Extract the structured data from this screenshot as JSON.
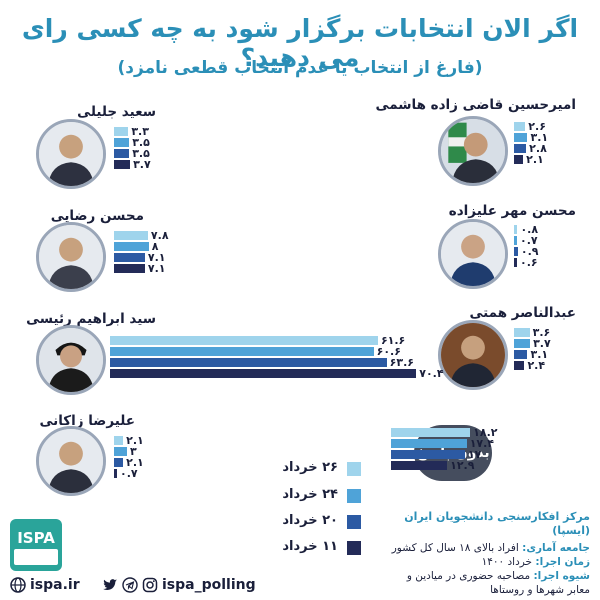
{
  "title": "اگر الان انتخابات برگزار شود به چه کسی رای می دهید؟",
  "subtitle": "(فارغ از انتخاب یا عدم انتخاب قطعی نامزد)",
  "none_label": "بدون پاسخ",
  "colors": {
    "series": [
      "#9fd4ec",
      "#4fa3d8",
      "#2c5aa3",
      "#232b58"
    ],
    "accent": "#2b8fb7",
    "badge": "#454d5e"
  },
  "chart_data": {
    "type": "bar",
    "orientation": "horizontal",
    "xlim": [
      0,
      75
    ],
    "series_names": [
      "۲۶ خرداد",
      "۲۴ خرداد",
      "۲۰ خرداد",
      "۱۱ خرداد"
    ],
    "categories": [
      {
        "name": "سعید جلیلی",
        "values": [
          3.3,
          3.5,
          3.5,
          3.7
        ],
        "labels": [
          "۳.۳",
          "۳.۵",
          "۳.۵",
          "۳.۷"
        ]
      },
      {
        "name": "امیرحسین قاضی زاده هاشمی",
        "values": [
          2.6,
          3.1,
          2.8,
          2.1
        ],
        "labels": [
          "۲.۶",
          "۳.۱",
          "۲.۸",
          "۲.۱"
        ]
      },
      {
        "name": "محسن رضایی",
        "values": [
          7.8,
          8,
          7.1,
          7.1
        ],
        "labels": [
          "۷.۸",
          "۸",
          "۷.۱",
          "۷.۱"
        ]
      },
      {
        "name": "محسن مهر علیزاده",
        "values": [
          0.8,
          0.7,
          0.9,
          0.6
        ],
        "labels": [
          "۰.۸",
          "۰.۷",
          "۰.۹",
          "۰.۶"
        ]
      },
      {
        "name": "سید ابراهیم رئیسی",
        "values": [
          61.6,
          60.6,
          63.6,
          70.4
        ],
        "labels": [
          "۶۱.۶",
          "۶۰.۶",
          "۶۳.۶",
          "۷۰.۴"
        ]
      },
      {
        "name": "عبدالناصر همتی",
        "values": [
          3.6,
          3.7,
          3.1,
          2.4
        ],
        "labels": [
          "۳.۶",
          "۳.۷",
          "۳.۱",
          "۲.۴"
        ]
      },
      {
        "name": "علیرضا زاکانی",
        "values": [
          2.1,
          3,
          2.1,
          0.7
        ],
        "labels": [
          "۲.۱",
          "۳",
          "۲.۱",
          "۰.۷"
        ]
      },
      {
        "name": "بدون پاسخ",
        "values": [
          18.2,
          17.4,
          17,
          12.9
        ],
        "labels": [
          "۱۸.۲",
          "۱۷.۴",
          "۱۷",
          "۱۲.۹"
        ]
      }
    ]
  },
  "legend": [
    "۲۶ خرداد",
    "۲۴ خرداد",
    "۲۰ خرداد",
    "۱۱ خرداد"
  ],
  "info": {
    "org": "مرکز افکارسنجی دانشجویان ایران (ایسپا)",
    "population_label": "جامعه آماری:",
    "population": "افراد بالای ۱۸ سال کل کشور",
    "date_label": "زمان اجرا:",
    "date": "خرداد ۱۴۰۰",
    "method_label": "شیوه اجرا:",
    "method": "مصاحبه حضوری در میادین و معابر شهرها و روستاها"
  },
  "footer": {
    "website": "ispa.ir",
    "handle": "ispa_polling",
    "icons": [
      "globe-icon",
      "twitter-icon",
      "telegram-icon",
      "instagram-icon"
    ]
  },
  "logo_text": "ISPA"
}
